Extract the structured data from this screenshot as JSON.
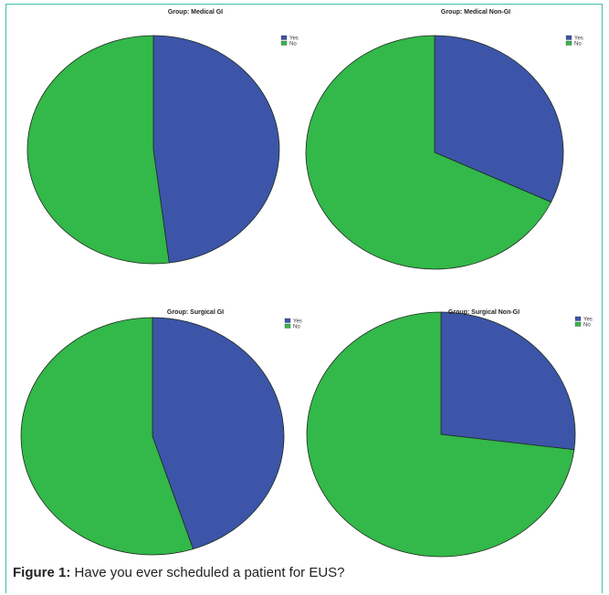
{
  "caption": {
    "label": "Figure 1:",
    "text": "Have you ever scheduled a patient for EUS?"
  },
  "colors": {
    "yes": "#3c55a8",
    "no": "#33b84a",
    "frame": "#3cc0b0"
  },
  "chart_data": [
    {
      "type": "pie",
      "title": "Group: Medical GI",
      "categories": [
        "Yes",
        "No"
      ],
      "values": [
        48,
        52
      ]
    },
    {
      "type": "pie",
      "title": "Group: Medical Non-GI",
      "categories": [
        "Yes",
        "No"
      ],
      "values": [
        32,
        68
      ]
    },
    {
      "type": "pie",
      "title": "Group: Surgical GI",
      "categories": [
        "Yes",
        "No"
      ],
      "values": [
        45,
        55
      ]
    },
    {
      "type": "pie",
      "title": "Group: Surgical Non-GI",
      "categories": [
        "Yes",
        "No"
      ],
      "values": [
        27,
        73
      ]
    }
  ]
}
